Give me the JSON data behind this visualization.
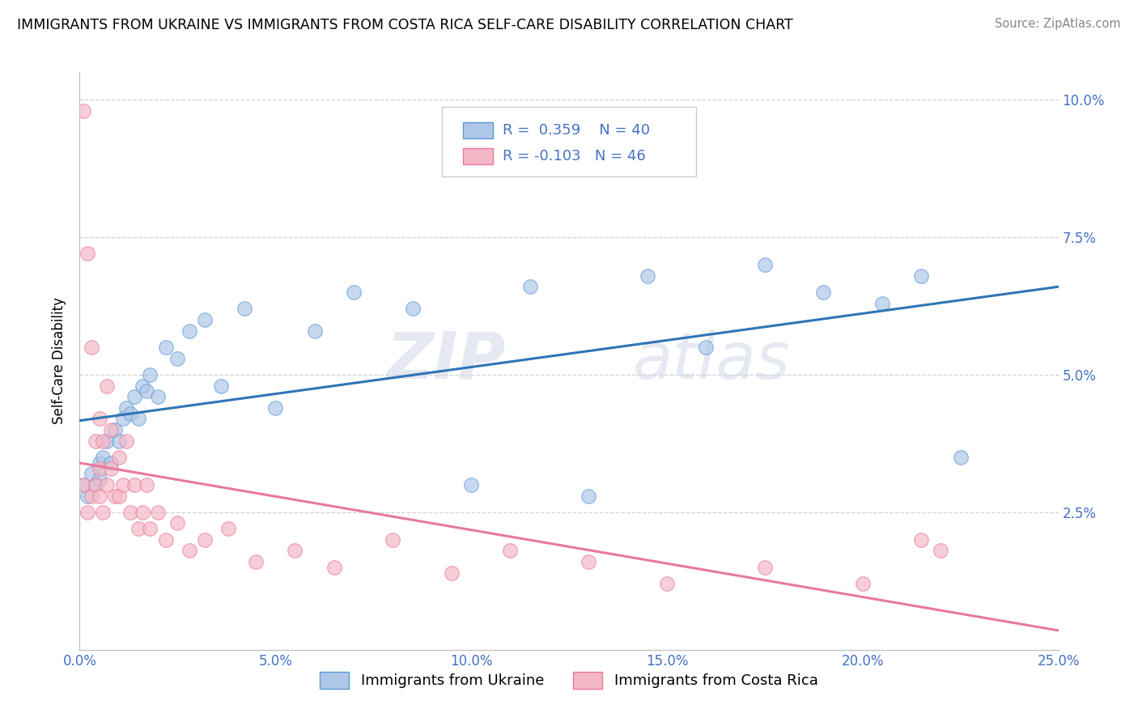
{
  "title": "IMMIGRANTS FROM UKRAINE VS IMMIGRANTS FROM COSTA RICA SELF-CARE DISABILITY CORRELATION CHART",
  "source": "Source: ZipAtlas.com",
  "ylabel": "Self-Care Disability",
  "xlim": [
    0.0,
    0.25
  ],
  "ylim": [
    0.0,
    0.105
  ],
  "xticks": [
    0.0,
    0.05,
    0.1,
    0.15,
    0.2,
    0.25
  ],
  "xticklabels": [
    "0.0%",
    "5.0%",
    "10.0%",
    "15.0%",
    "20.0%",
    "25.0%"
  ],
  "yticks": [
    0.025,
    0.05,
    0.075,
    0.1
  ],
  "yticklabels": [
    "2.5%",
    "5.0%",
    "7.5%",
    "10.0%"
  ],
  "ukraine_color": "#aec6e8",
  "ukraine_edge": "#5b9bd5",
  "ukraine_line": "#2e75b6",
  "costa_rica_color": "#f4b8c8",
  "costa_rica_edge": "#e8799a",
  "costa_rica_line": "#e8799a",
  "ukraine_R": 0.359,
  "ukraine_N": 40,
  "costa_rica_R": -0.103,
  "costa_rica_N": 46,
  "ukraine_x": [
    0.001,
    0.002,
    0.003,
    0.004,
    0.005,
    0.005,
    0.006,
    0.007,
    0.008,
    0.009,
    0.01,
    0.011,
    0.012,
    0.013,
    0.014,
    0.015,
    0.016,
    0.017,
    0.018,
    0.02,
    0.022,
    0.025,
    0.028,
    0.032,
    0.036,
    0.042,
    0.05,
    0.06,
    0.07,
    0.085,
    0.1,
    0.115,
    0.13,
    0.145,
    0.16,
    0.175,
    0.19,
    0.205,
    0.215,
    0.225
  ],
  "ukraine_y": [
    0.03,
    0.028,
    0.032,
    0.03,
    0.031,
    0.034,
    0.035,
    0.038,
    0.034,
    0.04,
    0.038,
    0.042,
    0.044,
    0.043,
    0.046,
    0.042,
    0.048,
    0.047,
    0.05,
    0.046,
    0.055,
    0.053,
    0.058,
    0.06,
    0.048,
    0.062,
    0.044,
    0.058,
    0.065,
    0.062,
    0.03,
    0.066,
    0.028,
    0.068,
    0.055,
    0.07,
    0.065,
    0.063,
    0.068,
    0.035
  ],
  "costa_rica_x": [
    0.001,
    0.001,
    0.002,
    0.002,
    0.003,
    0.003,
    0.004,
    0.004,
    0.005,
    0.005,
    0.005,
    0.006,
    0.006,
    0.007,
    0.007,
    0.008,
    0.008,
    0.009,
    0.01,
    0.01,
    0.011,
    0.012,
    0.013,
    0.014,
    0.015,
    0.016,
    0.017,
    0.018,
    0.02,
    0.022,
    0.025,
    0.028,
    0.032,
    0.038,
    0.045,
    0.055,
    0.065,
    0.08,
    0.095,
    0.11,
    0.13,
    0.15,
    0.175,
    0.2,
    0.215,
    0.22
  ],
  "costa_rica_y": [
    0.098,
    0.03,
    0.072,
    0.025,
    0.055,
    0.028,
    0.038,
    0.03,
    0.042,
    0.033,
    0.028,
    0.038,
    0.025,
    0.048,
    0.03,
    0.04,
    0.033,
    0.028,
    0.035,
    0.028,
    0.03,
    0.038,
    0.025,
    0.03,
    0.022,
    0.025,
    0.03,
    0.022,
    0.025,
    0.02,
    0.023,
    0.018,
    0.02,
    0.022,
    0.016,
    0.018,
    0.015,
    0.02,
    0.014,
    0.018,
    0.016,
    0.012,
    0.015,
    0.012,
    0.02,
    0.018
  ],
  "watermark_zip": "ZIP",
  "watermark_atlas": "atlas",
  "tick_color": "#4472c4",
  "grid_color": "#c0c0c0",
  "background_color": "#ffffff"
}
